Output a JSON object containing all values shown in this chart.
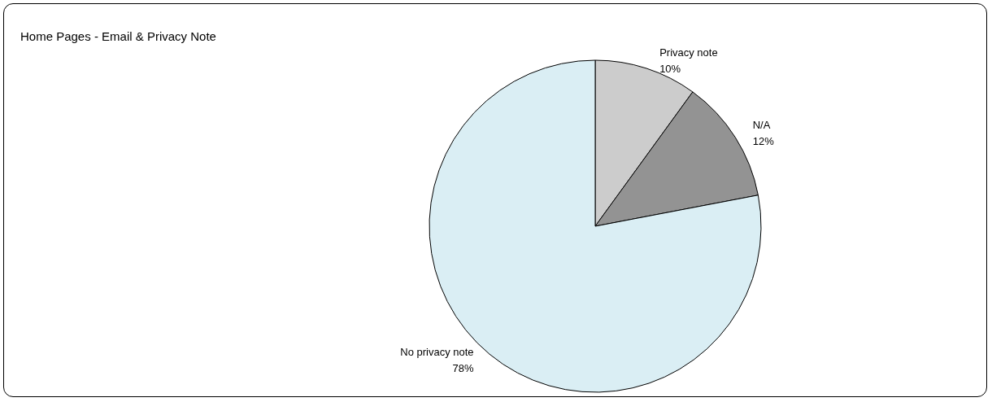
{
  "chart_data": {
    "type": "pie",
    "title": "Home Pages - Email & Privacy Note",
    "categories": [
      "Privacy note",
      "N/A",
      "No privacy note"
    ],
    "values": [
      10,
      12,
      78
    ],
    "value_labels": [
      "10%",
      "12%",
      "78%"
    ],
    "colors": [
      "#cccccc",
      "#939393",
      "#daeef4"
    ]
  }
}
